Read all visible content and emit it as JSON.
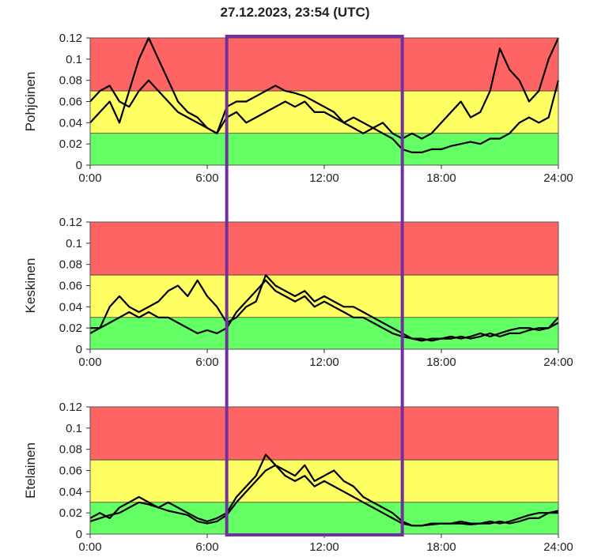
{
  "title": "27.12.2023, 23:54 (UTC)",
  "colors": {
    "high": "#ff6464",
    "medium": "#ffff64",
    "low": "#64ff64",
    "line": "#000000",
    "highlight": "#7030a0"
  },
  "highlight_window": {
    "start": 7.0,
    "end": 16.0
  },
  "chart_data": [
    {
      "type": "line",
      "ylabel": "Pohjoinen",
      "xlim": [
        0,
        24
      ],
      "ylim": [
        0,
        0.12
      ],
      "xticks": [
        "0:00",
        "6:00",
        "12:00",
        "18:00",
        "24:00"
      ],
      "yticks": [
        "0",
        "0.02",
        "0.04",
        "0.06",
        "0.08",
        "0.1",
        "0.12"
      ],
      "bands": [
        {
          "level": "low",
          "from": 0,
          "to": 0.03
        },
        {
          "level": "medium",
          "from": 0.03,
          "to": 0.07
        },
        {
          "level": "high",
          "from": 0.07,
          "to": 0.12
        }
      ],
      "series": [
        {
          "x": [
            0,
            0.5,
            1,
            1.5,
            2,
            2.5,
            3,
            3.5,
            4,
            4.5,
            5,
            5.5,
            6,
            6.5,
            7,
            7.5,
            8,
            8.5,
            9,
            9.5,
            10,
            10.5,
            11,
            11.5,
            12,
            12.5,
            13,
            13.5,
            14,
            14.5,
            15,
            15.5,
            16,
            16.5,
            17,
            17.5,
            18,
            18.5,
            19,
            19.5,
            20,
            20.5,
            21,
            21.5,
            22,
            22.5,
            23,
            23.5,
            24
          ],
          "y": [
            0.04,
            0.05,
            0.06,
            0.04,
            0.07,
            0.1,
            0.12,
            0.1,
            0.08,
            0.06,
            0.05,
            0.045,
            0.035,
            0.03,
            0.055,
            0.06,
            0.06,
            0.065,
            0.07,
            0.075,
            0.07,
            0.068,
            0.065,
            0.06,
            0.055,
            0.05,
            0.04,
            0.045,
            0.04,
            0.035,
            0.04,
            0.03,
            0.025,
            0.03,
            0.025,
            0.03,
            0.04,
            0.05,
            0.06,
            0.045,
            0.05,
            0.07,
            0.11,
            0.09,
            0.08,
            0.06,
            0.07,
            0.1,
            0.12
          ]
        },
        {
          "x": [
            0,
            0.5,
            1,
            1.5,
            2,
            2.5,
            3,
            3.5,
            4,
            4.5,
            5,
            5.5,
            6,
            6.5,
            7,
            7.5,
            8,
            8.5,
            9,
            9.5,
            10,
            10.5,
            11,
            11.5,
            12,
            12.5,
            13,
            13.5,
            14,
            14.5,
            15,
            15.5,
            16,
            16.5,
            17,
            17.5,
            18,
            18.5,
            19,
            19.5,
            20,
            20.5,
            21,
            21.5,
            22,
            22.5,
            23,
            23.5,
            24
          ],
          "y": [
            0.06,
            0.07,
            0.075,
            0.06,
            0.055,
            0.07,
            0.08,
            0.07,
            0.06,
            0.05,
            0.045,
            0.04,
            0.035,
            0.03,
            0.045,
            0.05,
            0.04,
            0.045,
            0.05,
            0.055,
            0.06,
            0.055,
            0.06,
            0.05,
            0.05,
            0.045,
            0.04,
            0.035,
            0.03,
            0.035,
            0.03,
            0.025,
            0.015,
            0.012,
            0.012,
            0.015,
            0.015,
            0.018,
            0.02,
            0.022,
            0.02,
            0.025,
            0.025,
            0.03,
            0.04,
            0.045,
            0.04,
            0.045,
            0.08
          ]
        }
      ]
    },
    {
      "type": "line",
      "ylabel": "Keskinen",
      "xlim": [
        0,
        24
      ],
      "ylim": [
        0,
        0.12
      ],
      "xticks": [
        "0:00",
        "6:00",
        "12:00",
        "18:00",
        "24:00"
      ],
      "yticks": [
        "0",
        "0.02",
        "0.04",
        "0.06",
        "0.08",
        "0.1",
        "0.12"
      ],
      "bands": [
        {
          "level": "low",
          "from": 0,
          "to": 0.03
        },
        {
          "level": "medium",
          "from": 0.03,
          "to": 0.07
        },
        {
          "level": "high",
          "from": 0.07,
          "to": 0.12
        }
      ],
      "series": [
        {
          "x": [
            0,
            0.5,
            1,
            1.5,
            2,
            2.5,
            3,
            3.5,
            4,
            4.5,
            5,
            5.5,
            6,
            6.5,
            7,
            7.5,
            8,
            8.5,
            9,
            9.5,
            10,
            10.5,
            11,
            11.5,
            12,
            12.5,
            13,
            13.5,
            14,
            14.5,
            15,
            15.5,
            16,
            16.5,
            17,
            17.5,
            18,
            18.5,
            19,
            19.5,
            20,
            20.5,
            21,
            21.5,
            22,
            22.5,
            23,
            23.5,
            24
          ],
          "y": [
            0.02,
            0.02,
            0.04,
            0.05,
            0.04,
            0.035,
            0.04,
            0.045,
            0.055,
            0.06,
            0.05,
            0.065,
            0.05,
            0.04,
            0.025,
            0.03,
            0.04,
            0.045,
            0.07,
            0.06,
            0.055,
            0.05,
            0.055,
            0.045,
            0.05,
            0.045,
            0.04,
            0.04,
            0.035,
            0.03,
            0.025,
            0.02,
            0.015,
            0.01,
            0.008,
            0.01,
            0.01,
            0.012,
            0.01,
            0.012,
            0.015,
            0.012,
            0.015,
            0.018,
            0.02,
            0.02,
            0.018,
            0.02,
            0.03
          ]
        },
        {
          "x": [
            0,
            0.5,
            1,
            1.5,
            2,
            2.5,
            3,
            3.5,
            4,
            4.5,
            5,
            5.5,
            6,
            6.5,
            7,
            7.5,
            8,
            8.5,
            9,
            9.5,
            10,
            10.5,
            11,
            11.5,
            12,
            12.5,
            13,
            13.5,
            14,
            14.5,
            15,
            15.5,
            16,
            16.5,
            17,
            17.5,
            18,
            18.5,
            19,
            19.5,
            20,
            20.5,
            21,
            21.5,
            22,
            22.5,
            23,
            23.5,
            24
          ],
          "y": [
            0.015,
            0.02,
            0.025,
            0.03,
            0.035,
            0.03,
            0.035,
            0.03,
            0.03,
            0.025,
            0.02,
            0.015,
            0.018,
            0.015,
            0.02,
            0.035,
            0.045,
            0.055,
            0.065,
            0.055,
            0.05,
            0.045,
            0.05,
            0.04,
            0.045,
            0.04,
            0.035,
            0.03,
            0.03,
            0.025,
            0.02,
            0.015,
            0.012,
            0.01,
            0.01,
            0.008,
            0.01,
            0.01,
            0.012,
            0.01,
            0.012,
            0.015,
            0.012,
            0.015,
            0.015,
            0.018,
            0.02,
            0.02,
            0.025
          ]
        }
      ]
    },
    {
      "type": "line",
      "ylabel": "Etelainen",
      "xlim": [
        0,
        24
      ],
      "ylim": [
        0,
        0.12
      ],
      "xticks": [
        "0:00",
        "6:00",
        "12:00",
        "18:00",
        "24:00"
      ],
      "yticks": [
        "0",
        "0.02",
        "0.04",
        "0.06",
        "0.08",
        "0.1",
        "0.12"
      ],
      "bands": [
        {
          "level": "low",
          "from": 0,
          "to": 0.03
        },
        {
          "level": "medium",
          "from": 0.03,
          "to": 0.07
        },
        {
          "level": "high",
          "from": 0.07,
          "to": 0.12
        }
      ],
      "series": [
        {
          "x": [
            0,
            0.5,
            1,
            1.5,
            2,
            2.5,
            3,
            3.5,
            4,
            4.5,
            5,
            5.5,
            6,
            6.5,
            7,
            7.5,
            8,
            8.5,
            9,
            9.5,
            10,
            10.5,
            11,
            11.5,
            12,
            12.5,
            13,
            13.5,
            14,
            14.5,
            15,
            15.5,
            16,
            16.5,
            17,
            17.5,
            18,
            18.5,
            19,
            19.5,
            20,
            20.5,
            21,
            21.5,
            22,
            22.5,
            23,
            23.5,
            24
          ],
          "y": [
            0.015,
            0.02,
            0.015,
            0.025,
            0.03,
            0.035,
            0.03,
            0.025,
            0.03,
            0.025,
            0.02,
            0.015,
            0.012,
            0.015,
            0.02,
            0.035,
            0.045,
            0.055,
            0.075,
            0.065,
            0.06,
            0.055,
            0.065,
            0.05,
            0.055,
            0.06,
            0.05,
            0.045,
            0.035,
            0.03,
            0.025,
            0.02,
            0.012,
            0.008,
            0.008,
            0.01,
            0.01,
            0.01,
            0.012,
            0.01,
            0.01,
            0.012,
            0.01,
            0.012,
            0.015,
            0.018,
            0.02,
            0.02,
            0.022
          ]
        },
        {
          "x": [
            0,
            0.5,
            1,
            1.5,
            2,
            2.5,
            3,
            3.5,
            4,
            4.5,
            5,
            5.5,
            6,
            6.5,
            7,
            7.5,
            8,
            8.5,
            9,
            9.5,
            10,
            10.5,
            11,
            11.5,
            12,
            12.5,
            13,
            13.5,
            14,
            14.5,
            15,
            15.5,
            16,
            16.5,
            17,
            17.5,
            18,
            18.5,
            19,
            19.5,
            20,
            20.5,
            21,
            21.5,
            22,
            22.5,
            23,
            23.5,
            24
          ],
          "y": [
            0.012,
            0.015,
            0.018,
            0.02,
            0.025,
            0.03,
            0.028,
            0.025,
            0.022,
            0.02,
            0.018,
            0.012,
            0.01,
            0.012,
            0.018,
            0.03,
            0.04,
            0.05,
            0.06,
            0.065,
            0.055,
            0.05,
            0.055,
            0.045,
            0.05,
            0.045,
            0.04,
            0.035,
            0.03,
            0.025,
            0.02,
            0.015,
            0.01,
            0.008,
            0.008,
            0.009,
            0.01,
            0.01,
            0.01,
            0.009,
            0.01,
            0.01,
            0.012,
            0.01,
            0.012,
            0.015,
            0.015,
            0.02,
            0.02
          ]
        }
      ]
    }
  ]
}
